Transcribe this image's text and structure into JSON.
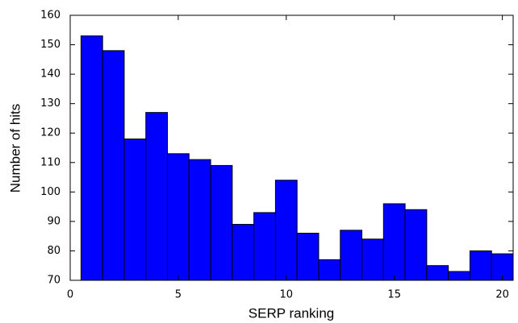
{
  "chart_data": {
    "type": "histogram",
    "x_label": "SERP ranking",
    "y_label": "Number of hits",
    "bins": [
      0.5,
      1.5,
      2.5,
      3.5,
      4.5,
      5.5,
      6.5,
      7.5,
      8.5,
      9.5,
      10.5,
      11.5,
      12.5,
      13.5,
      14.5,
      15.5,
      16.5,
      17.5,
      18.5,
      19.5,
      20.5
    ],
    "values": [
      153,
      148,
      118,
      127,
      113,
      111,
      109,
      89,
      93,
      104,
      86,
      77,
      87,
      84,
      96,
      94,
      75,
      73,
      80,
      79
    ],
    "color": "#0000ff",
    "xlim": [
      0,
      20.5
    ],
    "xticks": [
      0,
      5,
      10,
      15,
      20
    ],
    "ylim": [
      70,
      160
    ],
    "yticks": [
      70,
      80,
      90,
      100,
      110,
      120,
      130,
      140,
      150,
      160
    ]
  }
}
